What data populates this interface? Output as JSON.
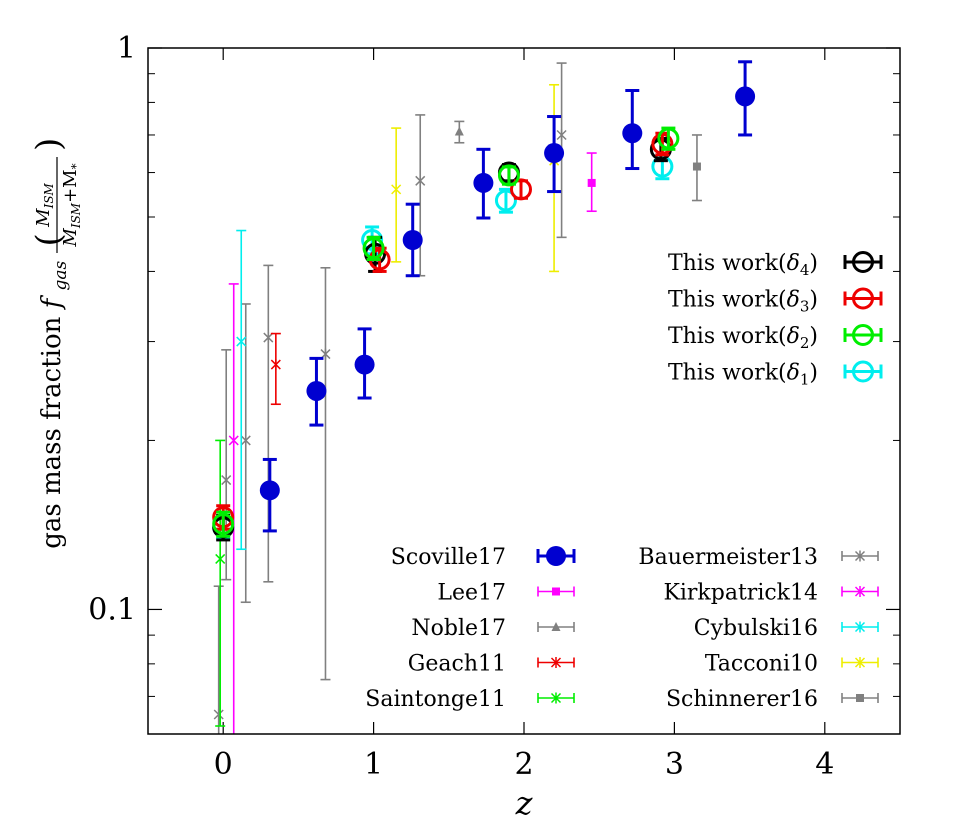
{
  "chart_data": {
    "type": "scatter",
    "xlabel": "z",
    "ylabel": "gas mass fraction",
    "ylabel_symbol_base": "f",
    "ylabel_symbol_sub": "gas",
    "ylabel_fraction_numerator": "M",
    "ylabel_fraction_numerator_sub": "ISM",
    "ylabel_fraction_denominator": "M",
    "ylabel_fraction_denominator_sub": "ISM",
    "ylabel_fraction_denominator_plus": "+M",
    "ylabel_fraction_denominator_sub2": "*",
    "xlim": [
      -0.5,
      4.5
    ],
    "ylim": [
      0.06,
      1.0
    ],
    "yscale": "log",
    "grid": false,
    "x_ticks": [
      0,
      1,
      2,
      3,
      4
    ],
    "x_tick_labels": [
      "0",
      "1",
      "2",
      "3",
      "4"
    ],
    "y_major_ticks": [
      0.1,
      1
    ],
    "y_major_tick_labels": [
      "0.1",
      "1"
    ],
    "y_minor_ticks": [
      0.06,
      0.07,
      0.08,
      0.09,
      0.2,
      0.3,
      0.4,
      0.5,
      0.6,
      0.7,
      0.8,
      0.9
    ],
    "series": [
      {
        "name": "Scoville17",
        "color": "#0000d0",
        "marker": "filled-circle",
        "legend_col": 0,
        "points": [
          {
            "x": 0.31,
            "y": 0.163,
            "lo": 0.138,
            "hi": 0.185
          },
          {
            "x": 0.62,
            "y": 0.245,
            "lo": 0.213,
            "hi": 0.28
          },
          {
            "x": 0.94,
            "y": 0.273,
            "lo": 0.238,
            "hi": 0.316
          },
          {
            "x": 1.26,
            "y": 0.455,
            "lo": 0.393,
            "hi": 0.527
          },
          {
            "x": 1.73,
            "y": 0.575,
            "lo": 0.498,
            "hi": 0.66
          },
          {
            "x": 2.2,
            "y": 0.65,
            "lo": 0.555,
            "hi": 0.755
          },
          {
            "x": 2.72,
            "y": 0.705,
            "lo": 0.61,
            "hi": 0.84
          },
          {
            "x": 3.47,
            "y": 0.82,
            "lo": 0.7,
            "hi": 0.945
          }
        ]
      },
      {
        "name": "Lee17",
        "color": "#ff00ff",
        "marker": "filled-square",
        "legend_col": 0,
        "points": [
          {
            "x": 2.45,
            "y": 0.575,
            "lo": 0.512,
            "hi": 0.65
          }
        ]
      },
      {
        "name": "Noble17",
        "color": "#808080",
        "marker": "filled-triangle",
        "legend_col": 0,
        "points": [
          {
            "x": 1.57,
            "y": 0.71,
            "lo": 0.678,
            "hi": 0.74
          }
        ]
      },
      {
        "name": "Geach11",
        "color": "#ee0000",
        "marker": "star",
        "legend_col": 0,
        "points": [
          {
            "x": 0.35,
            "y": 0.273,
            "lo": 0.232,
            "hi": 0.31
          }
        ]
      },
      {
        "name": "Saintonge11",
        "color": "#00ee00",
        "marker": "star",
        "legend_col": 0,
        "points": [
          {
            "x": -0.02,
            "y": 0.123,
            "lo": 0.062,
            "hi": 0.2
          }
        ]
      },
      {
        "name": "Bauermeister13",
        "color": "#808080",
        "marker": "star",
        "legend_col": 1,
        "points": [
          {
            "x": -0.03,
            "y": 0.065,
            "lo": 0.055,
            "hi": 0.11
          },
          {
            "x": 0.02,
            "y": 0.17,
            "lo": 0.113,
            "hi": 0.29
          },
          {
            "x": 0.15,
            "y": 0.2,
            "lo": 0.103,
            "hi": 0.35
          },
          {
            "x": 0.3,
            "y": 0.305,
            "lo": 0.112,
            "hi": 0.41
          },
          {
            "x": 0.68,
            "y": 0.285,
            "lo": 0.075,
            "hi": 0.406
          },
          {
            "x": 1.31,
            "y": 0.58,
            "lo": 0.393,
            "hi": 0.76
          },
          {
            "x": 2.25,
            "y": 0.7,
            "lo": 0.46,
            "hi": 0.94
          }
        ]
      },
      {
        "name": "Kirkpatrick14",
        "color": "#ff00ff",
        "marker": "star",
        "legend_col": 1,
        "points": [
          {
            "x": 0.07,
            "y": 0.2,
            "lo": 0.055,
            "hi": 0.38
          }
        ]
      },
      {
        "name": "Cybulski16",
        "color": "#00eeee",
        "marker": "star",
        "legend_col": 1,
        "points": [
          {
            "x": 0.12,
            "y": 0.3,
            "lo": 0.128,
            "hi": 0.473
          }
        ]
      },
      {
        "name": "Tacconi10",
        "color": "#eeee00",
        "marker": "star",
        "legend_col": 1,
        "points": [
          {
            "x": 1.15,
            "y": 0.56,
            "lo": 0.416,
            "hi": 0.72
          },
          {
            "x": 2.2,
            "y": 0.63,
            "lo": 0.4,
            "hi": 0.86
          }
        ]
      },
      {
        "name": "Schinnerer16",
        "color": "#808080",
        "marker": "filled-square",
        "legend_col": 1,
        "points": [
          {
            "x": 3.15,
            "y": 0.615,
            "lo": 0.535,
            "hi": 0.7
          }
        ]
      },
      {
        "name": "This work(δ4)",
        "color": "#000000",
        "marker": "open-circle",
        "legend_col": 2,
        "points": [
          {
            "x": 0.0,
            "y": 0.14,
            "lo": 0.133,
            "hi": 0.147
          },
          {
            "x": 1.01,
            "y": 0.43,
            "lo": 0.4,
            "hi": 0.46
          },
          {
            "x": 1.9,
            "y": 0.6,
            "lo": 0.58,
            "hi": 0.62
          },
          {
            "x": 2.91,
            "y": 0.66,
            "lo": 0.63,
            "hi": 0.69
          }
        ]
      },
      {
        "name": "This work(δ3)",
        "color": "#ee0000",
        "marker": "open-circle",
        "legend_col": 2,
        "points": [
          {
            "x": 0.0,
            "y": 0.146,
            "lo": 0.139,
            "hi": 0.153
          },
          {
            "x": 1.04,
            "y": 0.42,
            "lo": 0.4,
            "hi": 0.44
          },
          {
            "x": 1.98,
            "y": 0.56,
            "lo": 0.54,
            "hi": 0.58
          },
          {
            "x": 2.92,
            "y": 0.675,
            "lo": 0.645,
            "hi": 0.705
          }
        ]
      },
      {
        "name": "This work(δ2)",
        "color": "#00ee00",
        "marker": "open-circle",
        "legend_col": 2,
        "points": [
          {
            "x": 0.0,
            "y": 0.142,
            "lo": 0.135,
            "hi": 0.149
          },
          {
            "x": 1.0,
            "y": 0.44,
            "lo": 0.42,
            "hi": 0.46
          },
          {
            "x": 1.9,
            "y": 0.593,
            "lo": 0.572,
            "hi": 0.614
          },
          {
            "x": 2.96,
            "y": 0.69,
            "lo": 0.66,
            "hi": 0.72
          }
        ]
      },
      {
        "name": "This work(δ1)",
        "color": "#00eeee",
        "marker": "open-circle",
        "legend_col": 2,
        "points": [
          {
            "x": 0.0,
            "y": 0.14,
            "lo": 0.134,
            "hi": 0.146
          },
          {
            "x": 0.99,
            "y": 0.455,
            "lo": 0.43,
            "hi": 0.48
          },
          {
            "x": 1.88,
            "y": 0.535,
            "lo": 0.51,
            "hi": 0.56
          },
          {
            "x": 2.92,
            "y": 0.615,
            "lo": 0.585,
            "hi": 0.645
          }
        ]
      }
    ]
  }
}
